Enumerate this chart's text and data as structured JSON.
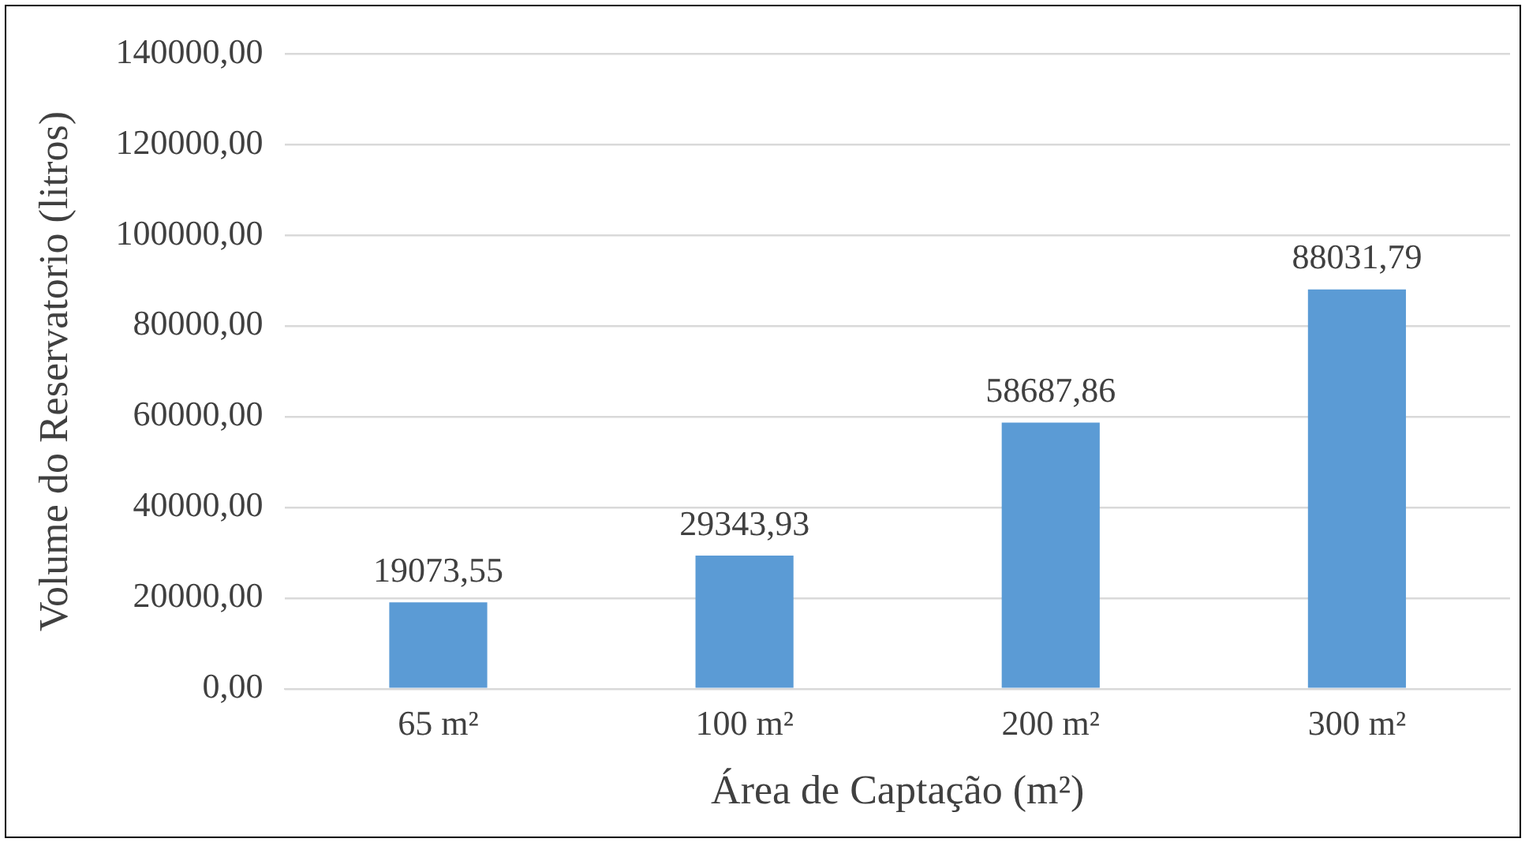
{
  "chart_data": {
    "type": "bar",
    "xlabel": "Área de Captação (m²)",
    "ylabel": "Volume do Reservatorio (litros)",
    "categories": [
      "65 m²",
      "100 m²",
      "200 m²",
      "300 m²"
    ],
    "values": [
      19073.55,
      29343.93,
      58687.86,
      88031.79
    ],
    "value_labels": [
      "19073,55",
      "29343,93",
      "58687,86",
      "88031,79"
    ],
    "color": "#5b9bd5",
    "ylim": [
      0,
      140000
    ],
    "yticks": [
      {
        "value": 0,
        "label": "0,00"
      },
      {
        "value": 20000,
        "label": "20000,00"
      },
      {
        "value": 40000,
        "label": "40000,00"
      },
      {
        "value": 60000,
        "label": "60000,00"
      },
      {
        "value": 80000,
        "label": "80000,00"
      },
      {
        "value": 100000,
        "label": "100000,00"
      },
      {
        "value": 120000,
        "label": "120000,00"
      },
      {
        "value": 140000,
        "label": "140000,00"
      }
    ],
    "grid": "y"
  }
}
